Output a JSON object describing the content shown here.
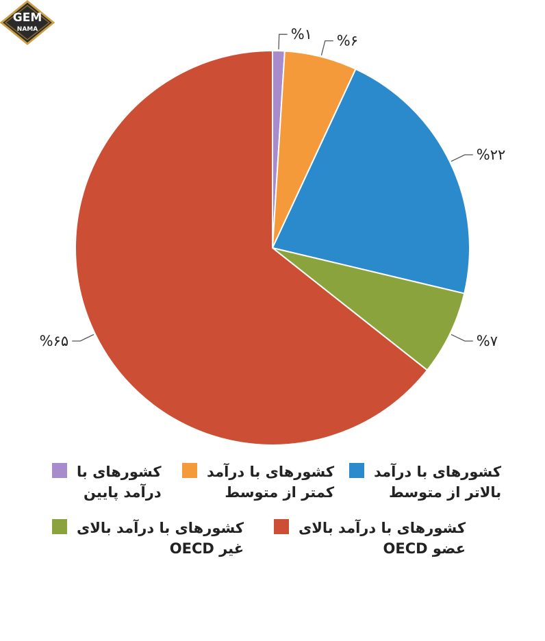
{
  "logo": {
    "line1": "GEM",
    "line2": "NAMA"
  },
  "chart_data": {
    "type": "pie",
    "start_angle_deg": 0,
    "direction": "clockwise",
    "slices": [
      {
        "key": "low",
        "value": 1,
        "label": "%۱",
        "color": "#a78bcc",
        "legend": [
          "کشورهای با",
          "درآمد پایین"
        ]
      },
      {
        "key": "lower_middle",
        "value": 6,
        "label": "%۶",
        "color": "#f59a3a",
        "legend": [
          "کشورهای با درآمد",
          "کمتر از متوسط"
        ]
      },
      {
        "key": "upper_middle",
        "value": 22,
        "label": "%۲۲",
        "color": "#2b8acc",
        "legend": [
          "کشورهای با درآمد",
          "بالاتر از متوسط"
        ]
      },
      {
        "key": "high_non_oecd",
        "value": 7,
        "label": "%۷",
        "color": "#8ba33d",
        "legend": [
          "کشورهای با درآمد بالای",
          "غیر OECD"
        ]
      },
      {
        "key": "high_oecd",
        "value": 65,
        "label": "%۶۵",
        "color": "#cc4f35",
        "legend": [
          "کشورهای با درآمد بالای",
          "عضو OECD"
        ]
      }
    ]
  }
}
